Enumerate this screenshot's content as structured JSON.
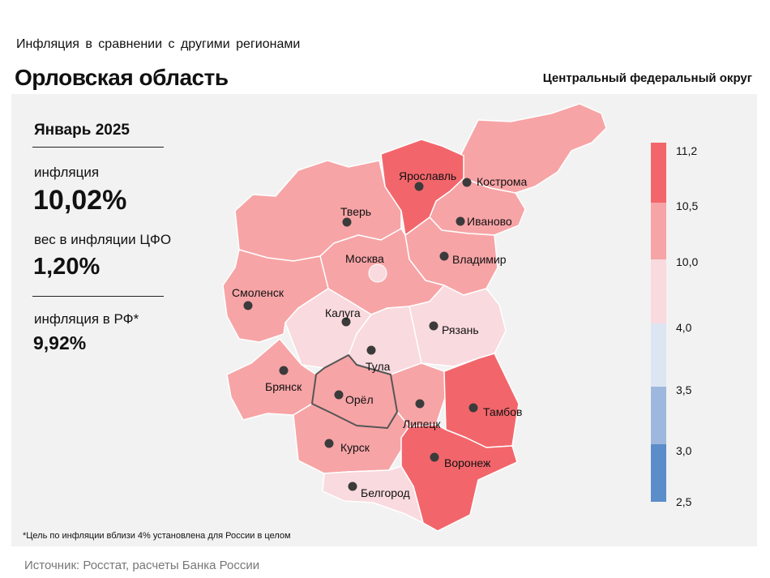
{
  "header": {
    "subtitle": "Инфляция в сравнении с другими регионами",
    "title": "Орловская область",
    "district": "Центральный федеральный округ"
  },
  "info": {
    "period": "Январь 2025",
    "inflation_label": "инфляция",
    "inflation_value": "10,02%",
    "weight_label": "вес в инфляции ЦФО",
    "weight_value": "1,20%",
    "rf_label": "инфляция в РФ*",
    "rf_value": "9,92%"
  },
  "legend": {
    "ticks": [
      "11,2",
      "10,5",
      "10,0",
      "4,0",
      "3,5",
      "3,0",
      "2,5"
    ],
    "colors": [
      "#f2666b",
      "#f7a4a6",
      "#f9dade",
      "#dce6f3",
      "#9db8dc",
      "#5a8dc9"
    ]
  },
  "regions": [
    {
      "name": "Ярославль",
      "class": "high"
    },
    {
      "name": "Кострома",
      "class": "mid"
    },
    {
      "name": "Тверь",
      "class": "mid"
    },
    {
      "name": "Иваново",
      "class": "mid"
    },
    {
      "name": "Москва",
      "class": "mid"
    },
    {
      "name": "Владимир",
      "class": "mid"
    },
    {
      "name": "Смоленск",
      "class": "mid"
    },
    {
      "name": "Калуга",
      "class": "low"
    },
    {
      "name": "Рязань",
      "class": "low"
    },
    {
      "name": "Тула",
      "class": "low"
    },
    {
      "name": "Брянск",
      "class": "mid"
    },
    {
      "name": "Орёл",
      "class": "mid"
    },
    {
      "name": "Липецк",
      "class": "mid"
    },
    {
      "name": "Тамбов",
      "class": "high"
    },
    {
      "name": "Курск",
      "class": "mid"
    },
    {
      "name": "Воронеж",
      "class": "high"
    },
    {
      "name": "Белгород",
      "class": "low"
    }
  ],
  "footnote": "*Цель по инфляции вблизи 4% установлена для России в целом",
  "source": "Источник: Росстат, расчеты Банка России"
}
